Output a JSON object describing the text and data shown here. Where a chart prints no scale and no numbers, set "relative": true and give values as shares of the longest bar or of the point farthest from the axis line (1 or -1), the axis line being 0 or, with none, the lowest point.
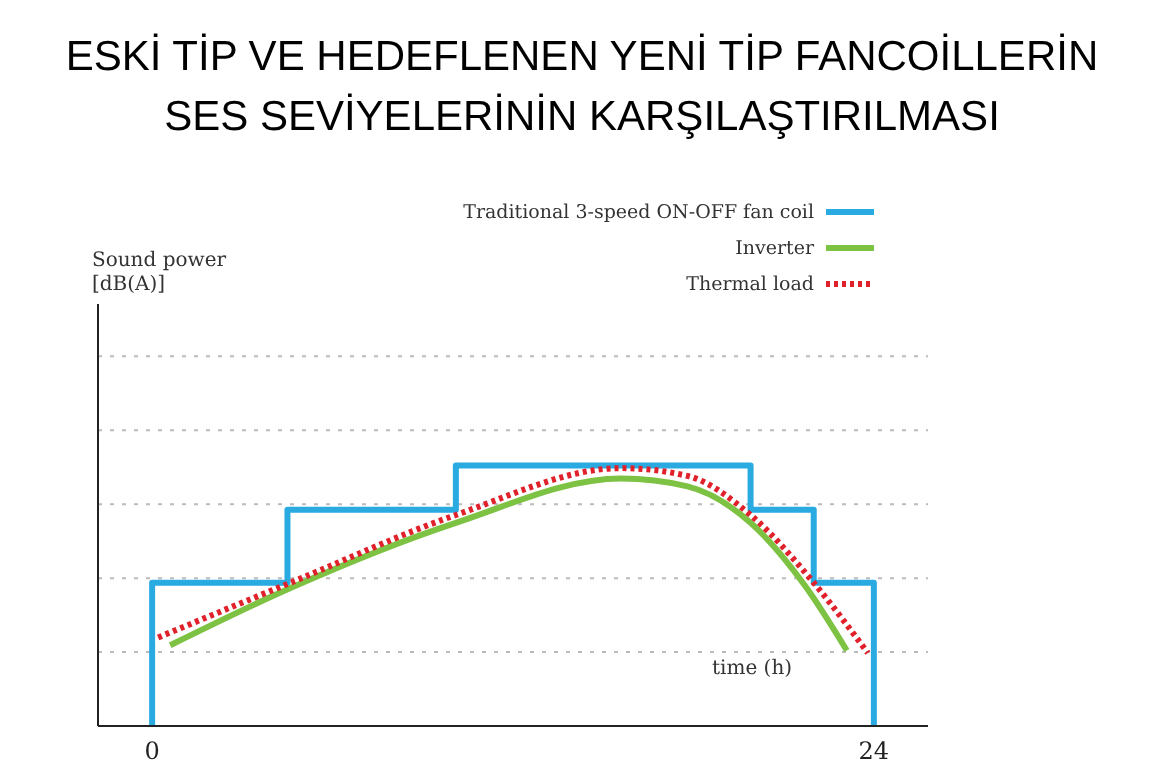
{
  "chart_data": {
    "type": "line",
    "title": "ESKİ TİP VE HEDEFLENEN YENİ TİP FANCOİLLERİN\nSES SEVİYELERİNİN KARŞILAŞTIRILMASI",
    "annotations": [
      "Sound power\n[dB(A)]"
    ],
    "xlabel": "time (h)",
    "relative": true,
    "xlim": [
      -1.8,
      25.8
    ],
    "xticks": [
      0,
      24
    ],
    "grid": "y",
    "legend": "top right",
    "series": [
      {
        "name": "Traditional 3-speed ON-OFF fan coil",
        "type": "step",
        "color": "#29abe2",
        "line_style": "solid",
        "x": [
          0,
          0,
          4.5,
          10.1,
          19.9,
          22.0,
          24
        ],
        "values": [
          0,
          0.55,
          0.83,
          1.0,
          0.83,
          0.55,
          0
        ]
      },
      {
        "name": "Inverter",
        "color": "#7dc242",
        "line_style": "solid",
        "x": [
          0.6,
          4.6,
          10.1,
          15.6,
          17.8,
          19.9,
          21.7,
          23.1
        ],
        "values": [
          0.31,
          0.53,
          0.78,
          0.95,
          0.92,
          0.78,
          0.54,
          0.29
        ]
      },
      {
        "name": "Thermal load",
        "color": "#e0202a",
        "line_style": "dotted",
        "x": [
          0.2,
          4.6,
          10.1,
          15.6,
          17.8,
          19.9,
          22.0,
          23.8
        ],
        "values": [
          0.34,
          0.55,
          0.81,
          0.99,
          0.96,
          0.81,
          0.55,
          0.28
        ]
      }
    ]
  }
}
